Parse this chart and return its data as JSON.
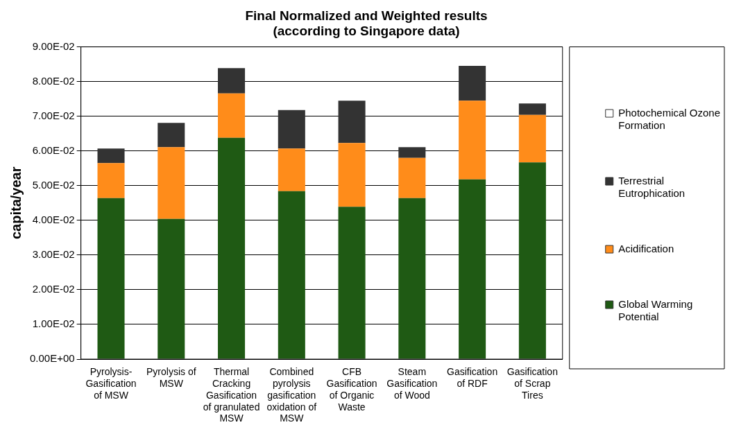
{
  "chart_data": {
    "type": "bar",
    "title": "Final Normalized and Weighted results",
    "subtitle": "(according to Singapore data)",
    "ylabel": "capita/year",
    "categories": [
      "Pyrolysis-Gasification of MSW",
      "Pyrolysis of MSW",
      "Thermal Cracking Gasification of granulated MSW",
      "Combined pyrolysis gasification oxidation of MSW",
      "CFB Gasification of Organic Waste",
      "Steam Gasification of Wood",
      "Gasification of RDF",
      "Gasification of Scrap Tires"
    ],
    "stacked": true,
    "series": [
      {
        "name": "Global Warming Potential",
        "color": "#1f5a14",
        "values": [
          0.0464,
          0.0404,
          0.0638,
          0.0484,
          0.0439,
          0.0464,
          0.0518,
          0.0567
        ]
      },
      {
        "name": "Acidification",
        "color": "#ff8c1a",
        "values": [
          0.0101,
          0.0207,
          0.0128,
          0.0123,
          0.0184,
          0.0116,
          0.0227,
          0.0137
        ]
      },
      {
        "name": "Terrestrial Eutrophication",
        "color": "#333333",
        "values": [
          0.0042,
          0.007,
          0.0073,
          0.0111,
          0.0122,
          0.0031,
          0.01,
          0.0033
        ]
      },
      {
        "name": "Photochemical Ozone Formation",
        "color": "#ffffff",
        "values": [
          0,
          0,
          0,
          0,
          0,
          0,
          0,
          0
        ]
      }
    ],
    "ylim": [
      0,
      0.09
    ],
    "yticks": [
      {
        "value": 0,
        "label": "0.00E+00"
      },
      {
        "value": 0.01,
        "label": "1.00E-02"
      },
      {
        "value": 0.02,
        "label": "2.00E-02"
      },
      {
        "value": 0.03,
        "label": "3.00E-02"
      },
      {
        "value": 0.04,
        "label": "4.00E-02"
      },
      {
        "value": 0.05,
        "label": "5.00E-02"
      },
      {
        "value": 0.06,
        "label": "6.00E-02"
      },
      {
        "value": 0.07,
        "label": "7.00E-02"
      },
      {
        "value": 0.08,
        "label": "8.00E-02"
      },
      {
        "value": 0.09,
        "label": "9.00E-02"
      }
    ],
    "grid": "y",
    "legend": "right"
  }
}
